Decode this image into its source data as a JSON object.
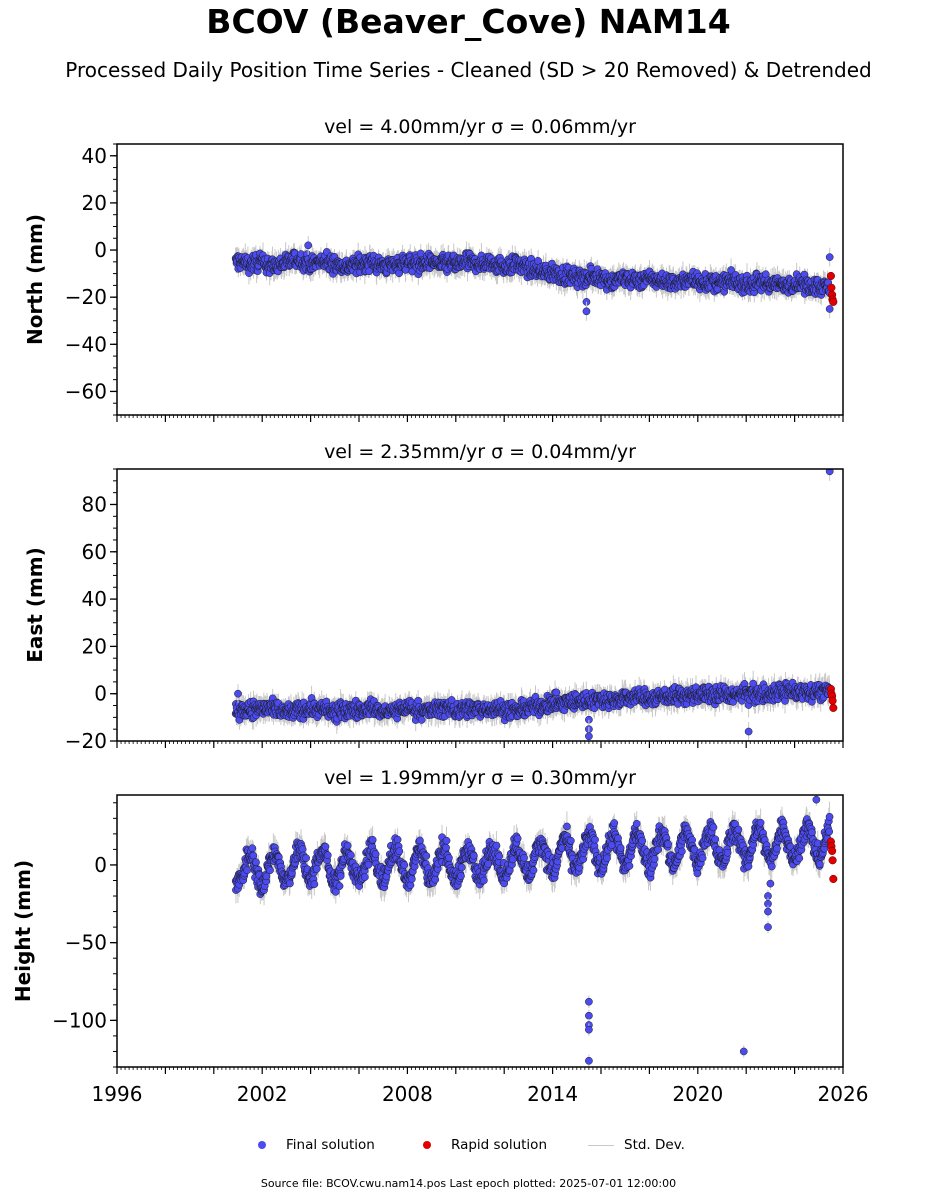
{
  "figure": {
    "title": "BCOV (Beaver_Cove) NAM14",
    "subtitle": "Processed Daily Position Time Series - Cleaned (SD > 20 Removed) & Detrended",
    "footer": "Source file: BCOV.cwu.nam14.pos  Last epoch plotted: 2025-07-01 12:00:00",
    "colors": {
      "final": "#4b4bf0",
      "rapid": "#e00000",
      "std": "#c8c8c8",
      "edge": "#1a1a1a"
    }
  },
  "legend": [
    {
      "label": "Final solution",
      "marker": "dot",
      "color": "#4b4bf0"
    },
    {
      "label": "Rapid solution",
      "marker": "dot",
      "color": "#e00000"
    },
    {
      "label": "Std. Dev.",
      "marker": "line",
      "color": "#c8c8c8"
    }
  ],
  "chart_data": [
    {
      "type": "scatter",
      "title": "vel = 4.00mm/yr   σ = 0.06mm/yr",
      "ylabel": "North (mm)",
      "xlabel": "",
      "xlim": [
        1996,
        2026
      ],
      "ylim": [
        -70,
        45
      ],
      "yticks": [
        40,
        20,
        0,
        -20,
        -40,
        -60
      ],
      "ytick_labels": [
        "40",
        "20",
        "0",
        "−20",
        "−40",
        "−60"
      ],
      "series": [
        {
          "name": "Final solution",
          "x": [
            2001.0,
            2001.5,
            2002.0,
            2002.5,
            2003.0,
            2003.5,
            2004.0,
            2004.5,
            2005.0,
            2005.5,
            2006.0,
            2006.5,
            2007.0,
            2007.5,
            2008.0,
            2008.5,
            2009.0,
            2009.5,
            2010.0,
            2010.5,
            2011.0,
            2011.5,
            2012.0,
            2012.5,
            2013.0,
            2013.5,
            2014.0,
            2014.5,
            2015.0,
            2015.5,
            2016.0,
            2016.5,
            2017.0,
            2017.5,
            2018.0,
            2018.5,
            2019.0,
            2019.5,
            2020.0,
            2020.5,
            2021.0,
            2021.5,
            2022.0,
            2022.5,
            2023.0,
            2023.5,
            2024.0,
            2024.5,
            2025.0,
            2025.3
          ],
          "y": [
            -5,
            -6,
            -5,
            -7,
            -5,
            -4,
            -6,
            -5,
            -6,
            -7,
            -6,
            -5,
            -7,
            -6,
            -5,
            -6,
            -5,
            -6,
            -6,
            -5,
            -6,
            -5,
            -7,
            -6,
            -8,
            -9,
            -10,
            -11,
            -12,
            -11,
            -12,
            -13,
            -12,
            -13,
            -12,
            -13,
            -14,
            -13,
            -13,
            -14,
            -14,
            -13,
            -15,
            -14,
            -14,
            -15,
            -14,
            -15,
            -15,
            -16
          ],
          "outliers": {
            "x": [
              2015.4,
              2015.4,
              2003.9,
              2025.45,
              2025.45
            ],
            "y": [
              -22,
              -26,
              2,
              -3,
              -25
            ]
          }
        },
        {
          "name": "Rapid solution",
          "x": [
            2025.5,
            2025.52,
            2025.55,
            2025.57,
            2025.6
          ],
          "y": [
            -11,
            -16,
            -19,
            -21,
            -22
          ]
        }
      ],
      "scatter_spread": 3
    },
    {
      "type": "scatter",
      "title": "vel = 2.35mm/yr   σ = 0.04mm/yr",
      "ylabel": "East (mm)",
      "xlabel": "",
      "xlim": [
        1996,
        2026
      ],
      "ylim": [
        -20,
        95
      ],
      "yticks": [
        80,
        60,
        40,
        20,
        0,
        -20
      ],
      "ytick_labels": [
        "80",
        "60",
        "40",
        "20",
        "0",
        "−20"
      ],
      "series": [
        {
          "name": "Final solution",
          "x": [
            2001.0,
            2001.5,
            2002.0,
            2002.5,
            2003.0,
            2003.5,
            2004.0,
            2004.5,
            2005.0,
            2005.5,
            2006.0,
            2006.5,
            2007.0,
            2007.5,
            2008.0,
            2008.5,
            2009.0,
            2009.5,
            2010.0,
            2010.5,
            2011.0,
            2011.5,
            2012.0,
            2012.5,
            2013.0,
            2013.5,
            2014.0,
            2014.5,
            2015.0,
            2015.5,
            2016.0,
            2016.5,
            2017.0,
            2017.5,
            2018.0,
            2018.5,
            2019.0,
            2019.5,
            2020.0,
            2020.5,
            2021.0,
            2021.5,
            2022.0,
            2022.5,
            2023.0,
            2023.5,
            2024.0,
            2024.5,
            2025.0,
            2025.3
          ],
          "y": [
            -7,
            -7,
            -6,
            -7,
            -8,
            -7,
            -6,
            -7,
            -8,
            -7,
            -7,
            -6,
            -8,
            -7,
            -6,
            -7,
            -7,
            -6,
            -7,
            -6,
            -7,
            -6,
            -7,
            -7,
            -6,
            -5,
            -4,
            -4,
            -3,
            -3,
            -2,
            -3,
            -2,
            -1,
            -2,
            -1,
            -1,
            -1,
            0,
            -1,
            0,
            -1,
            0,
            0,
            0,
            1,
            1,
            1,
            1,
            1
          ],
          "outliers": {
            "x": [
              2015.5,
              2015.5,
              2015.5,
              2022.1,
              2025.45,
              2001.0
            ],
            "y": [
              -11,
              -15,
              -18,
              -16,
              94,
              0
            ]
          }
        },
        {
          "name": "Rapid solution",
          "x": [
            2025.5,
            2025.52,
            2025.55,
            2025.57,
            2025.6
          ],
          "y": [
            2,
            0,
            -1,
            -3,
            -6
          ]
        }
      ],
      "scatter_spread": 3
    },
    {
      "type": "scatter",
      "title": "vel = 1.99mm/yr   σ = 0.30mm/yr",
      "ylabel": "Height (mm)",
      "xlabel": "",
      "xlim": [
        1996,
        2026
      ],
      "ylim": [
        -130,
        45
      ],
      "yticks": [
        0,
        -50,
        -100
      ],
      "ytick_labels": [
        "0",
        "−50",
        "−100"
      ],
      "xticks": [
        1996,
        2002,
        2008,
        2014,
        2020,
        2026
      ],
      "xtick_labels": [
        "1996",
        "2002",
        "2008",
        "2014",
        "2020",
        "2026"
      ],
      "series": [
        {
          "name": "Final solution",
          "seasonal_amplitude": 10,
          "x": [
            2001.0,
            2002.0,
            2003.0,
            2004.0,
            2005.0,
            2006.0,
            2007.0,
            2008.0,
            2009.0,
            2010.0,
            2011.0,
            2012.0,
            2013.0,
            2014.0,
            2015.0,
            2016.0,
            2017.0,
            2018.0,
            2019.0,
            2020.0,
            2021.0,
            2022.0,
            2023.0,
            2024.0,
            2025.0
          ],
          "y": [
            -2,
            -3,
            -1,
            0,
            -2,
            -1,
            0,
            0,
            1,
            0,
            1,
            2,
            4,
            6,
            8,
            9,
            10,
            10,
            11,
            11,
            12,
            13,
            14,
            14,
            15
          ],
          "outliers": {
            "x": [
              2015.5,
              2015.5,
              2015.5,
              2015.5,
              2015.5,
              2021.9,
              2022.9,
              2022.9,
              2022.9,
              2022.9,
              2023.0,
              2024.9
            ],
            "y": [
              -88,
              -97,
              -103,
              -106,
              -126,
              -120,
              -20,
              -25,
              -30,
              -40,
              -12,
              42
            ]
          }
        },
        {
          "name": "Rapid solution",
          "x": [
            2025.5,
            2025.52,
            2025.55,
            2025.57,
            2025.6
          ],
          "y": [
            15,
            12,
            9,
            3,
            -9
          ]
        }
      ],
      "scatter_spread": 6
    }
  ]
}
